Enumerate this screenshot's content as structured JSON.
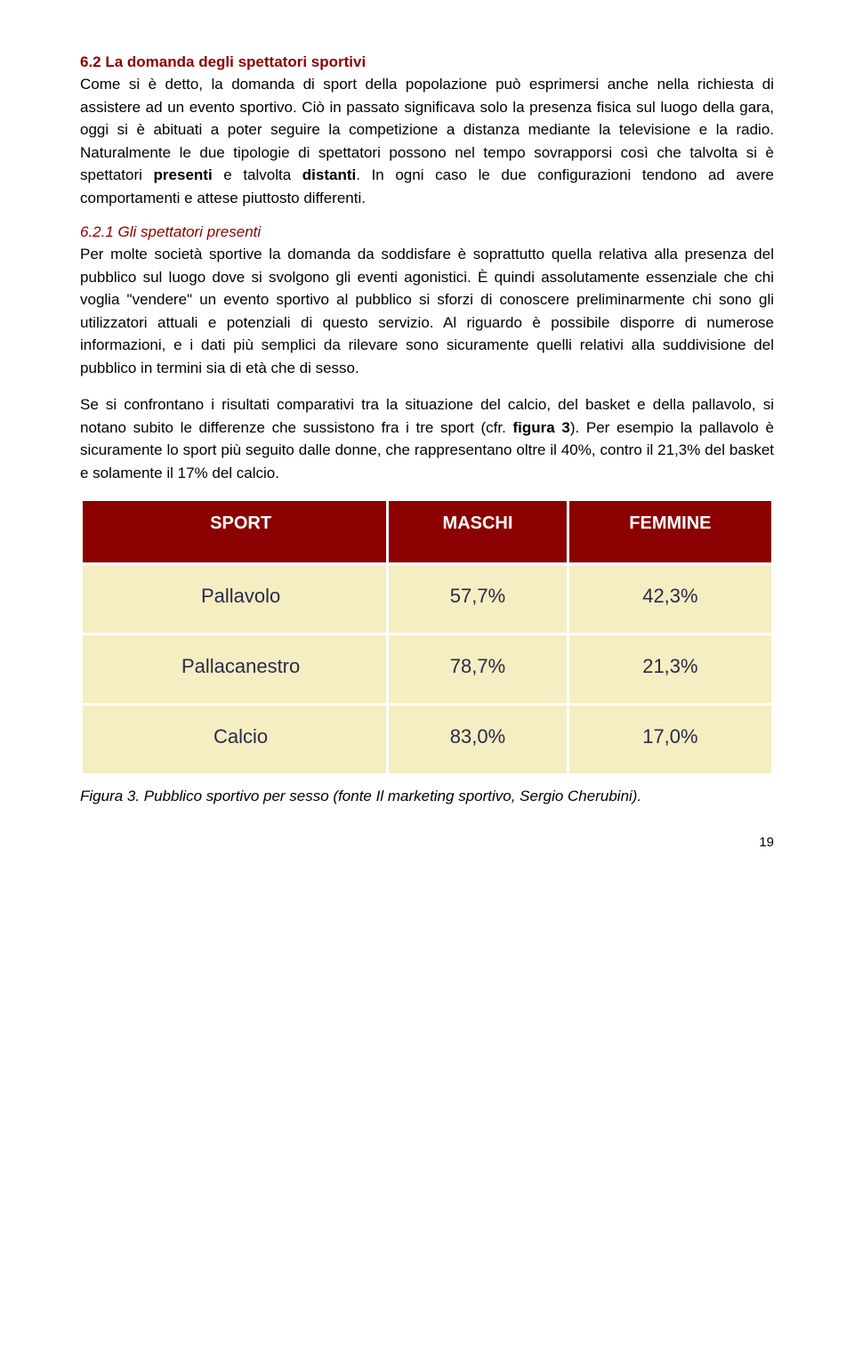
{
  "colors": {
    "heading": "#8b0000",
    "body": "#000000",
    "table_header_bg": "#8b0000",
    "table_header_fg": "#ffffff",
    "table_cell_bg": "#f5eec2",
    "table_cell_fg": "#2a2a4a",
    "table_border": "#ffffff",
    "page_bg": "#ffffff"
  },
  "typography": {
    "body_font": "Verdana",
    "body_size_pt": 12,
    "heading_size_pt": 12,
    "table_header_size_pt": 14,
    "table_cell_size_pt": 16
  },
  "section": {
    "heading": "6.2 La domanda degli spettatori sportivi",
    "para1_a": "Come si è detto, la domanda di sport della popolazione può esprimersi anche nella richiesta di assistere ad un evento sportivo. Ciò in passato significava solo la presenza fisica sul luogo della gara, oggi si è abituati a poter seguire la competizione a distanza mediante la televisione e la radio. Naturalmente le due tipologie di spettatori possono nel tempo sovrapporsi così che talvolta si è spettatori ",
    "para1_bold1": "presenti",
    "para1_mid": " e talvolta ",
    "para1_bold2": "distanti",
    "para1_b": ". In ogni caso le due configurazioni tendono ad avere comportamenti e attese piuttosto differenti."
  },
  "subsection": {
    "heading": "6.2.1 Gli spettatori presenti",
    "para1": "Per molte società sportive la domanda da soddisfare è soprattutto quella relativa alla presenza del pubblico sul luogo dove si svolgono gli eventi agonistici. È quindi assolutamente essenziale che chi voglia \"vendere\" un evento sportivo al pubblico si sforzi di conoscere preliminarmente chi sono gli utilizzatori attuali e potenziali di questo servizio. Al riguardo è possibile disporre di numerose informazioni, e i dati più semplici da rilevare sono sicuramente quelli relativi alla suddivisione del pubblico in termini sia di età che di sesso.",
    "para2_a": "Se si confrontano i risultati comparativi tra la situazione del calcio, del basket e della pallavolo, si notano subito le differenze che sussistono fra i tre sport (cfr. ",
    "para2_bold": "figura 3",
    "para2_b": "). Per esempio la pallavolo è sicuramente lo sport più seguito dalle donne, che rappresentano oltre il 40%, contro il 21,3% del basket e solamente il 17% del calcio."
  },
  "table": {
    "type": "table",
    "columns": [
      "SPORT",
      "MASCHI",
      "FEMMINE"
    ],
    "rows": [
      {
        "sport": "Pallavolo",
        "maschi": "57,7%",
        "femmine": "42,3%"
      },
      {
        "sport": "Pallacanestro",
        "maschi": "78,7%",
        "femmine": "21,3%"
      },
      {
        "sport": "Calcio",
        "maschi": "83,0%",
        "femmine": "17,0%"
      }
    ],
    "col_widths": [
      "36%",
      "32%",
      "32%"
    ],
    "header_align": "center",
    "cell_align": "center"
  },
  "caption": "Figura 3. Pubblico sportivo per sesso (fonte Il marketing sportivo, Sergio Cherubini).",
  "page_number": "19"
}
